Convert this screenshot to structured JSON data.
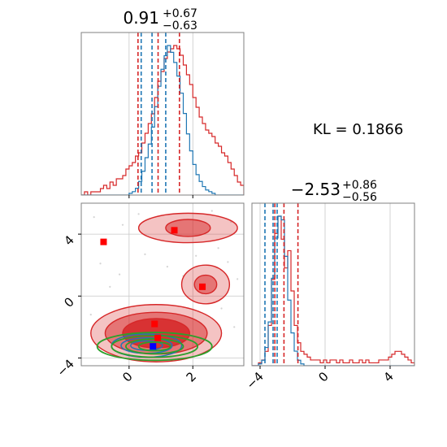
{
  "colors": {
    "posterior": "#d62728",
    "reference": "#1f77b4",
    "truth_contour": "#2ca02c",
    "marker_red": "#ff0000",
    "marker_blue": "#0000ff",
    "grid": "#c8c8c8",
    "frame": "#808080"
  },
  "kl_text": "KL = 0.1866",
  "chart_data": [
    {
      "type": "histogram",
      "panel": "marginal-param-1",
      "title": {
        "median": "0.91",
        "upper": "+0.67",
        "lower": "−0.63"
      },
      "xlim": [
        -1.5,
        3.6
      ],
      "grid": true,
      "series": [
        {
          "name": "",
          "color": "#d62728",
          "bin_start": -1.5,
          "bin_width": 0.1,
          "counts": [
            0,
            1,
            0,
            1,
            1,
            1,
            2,
            3,
            2,
            4,
            3,
            5,
            5,
            6,
            8,
            9,
            10,
            12,
            13,
            16,
            19,
            22,
            25,
            30,
            35,
            38,
            42,
            44,
            45,
            46,
            45,
            43,
            40,
            37,
            34,
            30,
            27,
            24,
            22,
            20,
            19,
            18,
            16,
            15,
            13,
            12,
            10,
            8,
            6,
            4,
            3
          ]
        },
        {
          "name": "",
          "color": "#1f77b4",
          "bin_start": -1.5,
          "bin_width": 0.1,
          "counts": [
            0,
            0,
            0,
            0,
            0,
            0,
            0,
            0,
            0,
            0,
            0,
            0,
            0,
            0,
            0,
            1,
            2,
            4,
            8,
            14,
            22,
            30,
            40,
            52,
            64,
            74,
            82,
            88,
            84,
            78,
            70,
            60,
            48,
            36,
            26,
            18,
            12,
            8,
            5,
            3,
            2,
            1,
            0,
            0,
            0,
            0,
            0,
            0,
            0,
            0,
            0
          ]
        }
      ],
      "quantile_lines": {
        "red": [
          0.28,
          0.91,
          1.58
        ],
        "blue": [
          0.38,
          0.72,
          1.15
        ]
      }
    },
    {
      "type": "histogram",
      "panel": "marginal-param-2",
      "title": {
        "median": "−2.53",
        "upper": "+0.86",
        "lower": "−0.56"
      },
      "xlim": [
        -4.5,
        5.5
      ],
      "xticks": [
        "−4",
        "0",
        "4"
      ],
      "grid": true,
      "series": [
        {
          "name": "",
          "color": "#d62728",
          "bin_start": -4.5,
          "bin_width": 0.2,
          "counts": [
            0,
            0,
            1,
            2,
            5,
            14,
            30,
            46,
            52,
            44,
            34,
            40,
            26,
            14,
            8,
            5,
            4,
            3,
            2,
            2,
            2,
            1,
            2,
            1,
            2,
            2,
            1,
            2,
            1,
            1,
            2,
            1,
            1,
            2,
            1,
            2,
            1,
            1,
            1,
            2,
            2,
            2,
            3,
            4,
            5,
            5,
            4,
            3,
            2,
            1
          ]
        },
        {
          "name": "",
          "color": "#1f77b4",
          "bin_start": -4.5,
          "bin_width": 0.2,
          "counts": [
            0,
            0,
            1,
            3,
            10,
            24,
            48,
            70,
            82,
            80,
            60,
            36,
            18,
            8,
            3,
            1,
            0,
            0,
            0,
            0,
            0,
            0,
            0,
            0,
            0,
            0,
            0,
            0,
            0,
            0,
            0,
            0,
            0,
            0,
            0,
            0,
            0,
            0,
            0,
            0,
            0,
            0,
            0,
            0,
            0,
            0,
            0,
            0,
            0,
            0
          ]
        }
      ],
      "quantile_lines": {
        "red": [
          -3.09,
          -2.53,
          -1.67
        ],
        "blue": [
          -3.7,
          -3.2,
          -2.95
        ]
      }
    },
    {
      "type": "contour",
      "panel": "joint-param-1-param-2",
      "xlim": [
        -1.5,
        3.6
      ],
      "ylim": [
        -4.5,
        6.0
      ],
      "xticks": [
        "0",
        "2"
      ],
      "yticks": [
        "−4",
        "0",
        "4"
      ],
      "grid": true,
      "blobs": [
        {
          "name": "",
          "color": "#d62728",
          "center": [
            0.85,
            -2.4
          ],
          "radii": [
            [
              2.05,
              1.85
            ],
            [
              1.6,
              1.35
            ],
            [
              1.05,
              0.95
            ]
          ]
        },
        {
          "name": "",
          "color": "#d62728",
          "center": [
            1.85,
            4.4
          ],
          "radii": [
            [
              1.55,
              0.95
            ],
            [
              0.7,
              0.55
            ]
          ]
        },
        {
          "name": "",
          "color": "#d62728",
          "center": [
            2.4,
            0.75
          ],
          "radii": [
            [
              0.75,
              1.25
            ],
            [
              0.35,
              0.6
            ]
          ]
        }
      ],
      "blue_contours": {
        "color": "#1f77b4",
        "center": [
          0.55,
          -3.2
        ],
        "radii": [
          [
            1.1,
            0.75
          ],
          [
            0.8,
            0.5
          ],
          [
            0.5,
            0.3
          ]
        ]
      },
      "green_contours": {
        "color": "#2ca02c",
        "center": [
          0.8,
          -3.25
        ],
        "radii": [
          [
            1.8,
            0.9
          ],
          [
            1.35,
            0.7
          ],
          [
            0.9,
            0.48
          ],
          [
            0.5,
            0.28
          ]
        ]
      },
      "markers": [
        {
          "color": "#ff0000",
          "x": -0.8,
          "y": 3.5
        },
        {
          "color": "#ff0000",
          "x": 1.42,
          "y": 4.25
        },
        {
          "color": "#ff0000",
          "x": 2.3,
          "y": 0.6
        },
        {
          "color": "#ff0000",
          "x": 0.8,
          "y": -1.8
        },
        {
          "color": "#ff0000",
          "x": 0.9,
          "y": -2.7
        },
        {
          "color": "#0000ff",
          "x": 0.75,
          "y": -3.25
        }
      ]
    }
  ]
}
